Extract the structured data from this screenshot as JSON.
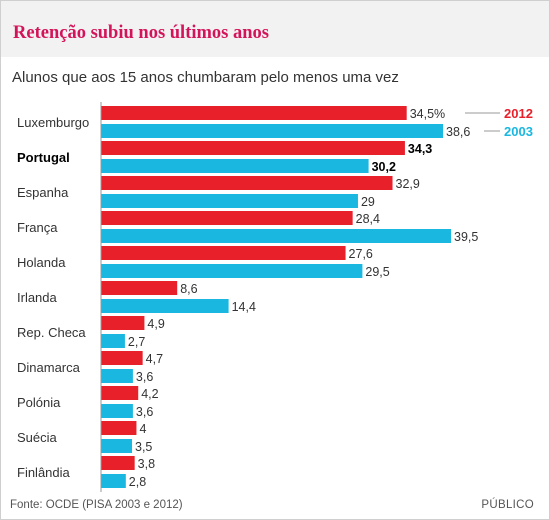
{
  "header": {
    "title": "Retenção subiu nos últimos anos",
    "subtitle": "Alunos que aos 15 anos chumbaram pelo menos uma vez"
  },
  "footer": {
    "source": "Fonte: OCDE (PISA 2003 e 2012)",
    "brand": "PÚBLICO"
  },
  "chart_data": {
    "type": "bar",
    "orientation": "horizontal",
    "categories": [
      "Luxemburgo",
      "Portugal",
      "Espanha",
      "França",
      "Holanda",
      "Irlanda",
      "Rep. Checa",
      "Dinamarca",
      "Polónia",
      "Suécia",
      "Finlândia"
    ],
    "highlight_category": "Portugal",
    "series": [
      {
        "name": "2012",
        "color": "#e8202a",
        "values": [
          34.5,
          34.3,
          32.9,
          28.4,
          27.6,
          8.6,
          4.9,
          4.7,
          4.2,
          4,
          3.8
        ],
        "labels": [
          "34,5%",
          "34,3",
          "32,9",
          "28,4",
          "27,6",
          "8,6",
          "4,9",
          "4,7",
          "4,2",
          "4",
          "3,8"
        ]
      },
      {
        "name": "2003",
        "color": "#1ab7e0",
        "values": [
          38.6,
          30.2,
          29,
          39.5,
          29.5,
          14.4,
          2.7,
          3.6,
          3.6,
          3.5,
          2.8
        ],
        "labels": [
          "38,6",
          "30,2",
          "29",
          "39,5",
          "29,5",
          "14,4",
          "2,7",
          "3,6",
          "3,6",
          "3,5",
          "2,8"
        ]
      }
    ],
    "xlim": [
      0,
      39.5
    ],
    "legend": "inline at the first category, right side",
    "axis_line_color": "#999999"
  }
}
